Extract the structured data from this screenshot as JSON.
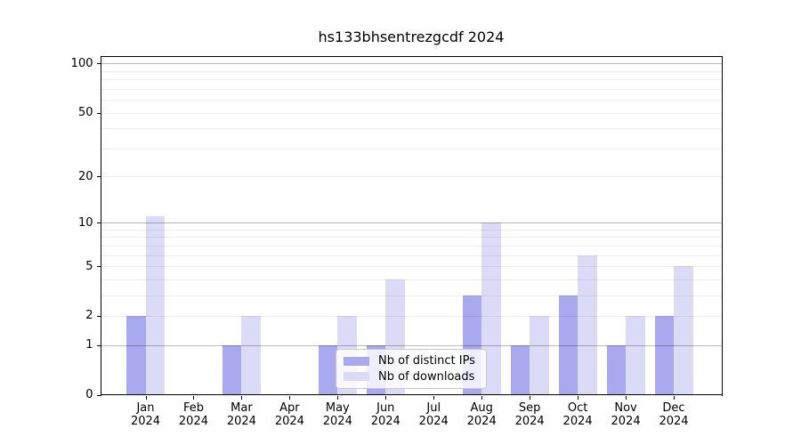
{
  "title": "hs133bhsentrezgcdf 2024",
  "chart_data": {
    "type": "bar",
    "title": "hs133bhsentrezgcdf 2024",
    "categories": [
      "Jan",
      "Feb",
      "Mar",
      "Apr",
      "May",
      "Jun",
      "Jul",
      "Aug",
      "Sep",
      "Oct",
      "Nov",
      "Dec"
    ],
    "x_year_label": "2024",
    "series": [
      {
        "name": "Nb of distinct IPs",
        "color": "#a9a9f0",
        "values": [
          2,
          0,
          1,
          0,
          1,
          1,
          0,
          3,
          1,
          3,
          1,
          2
        ]
      },
      {
        "name": "Nb of downloads",
        "color": "#dbdbf8",
        "values": [
          11,
          0,
          2,
          0,
          2,
          4,
          0,
          10,
          2,
          6,
          2,
          5
        ]
      }
    ],
    "yscale": "log10(1+v)",
    "ytick_values": [
      100,
      50,
      20,
      10,
      5,
      2,
      1,
      0
    ],
    "ylim": [
      0,
      110
    ],
    "grid": true,
    "legend_position": "lower center"
  }
}
